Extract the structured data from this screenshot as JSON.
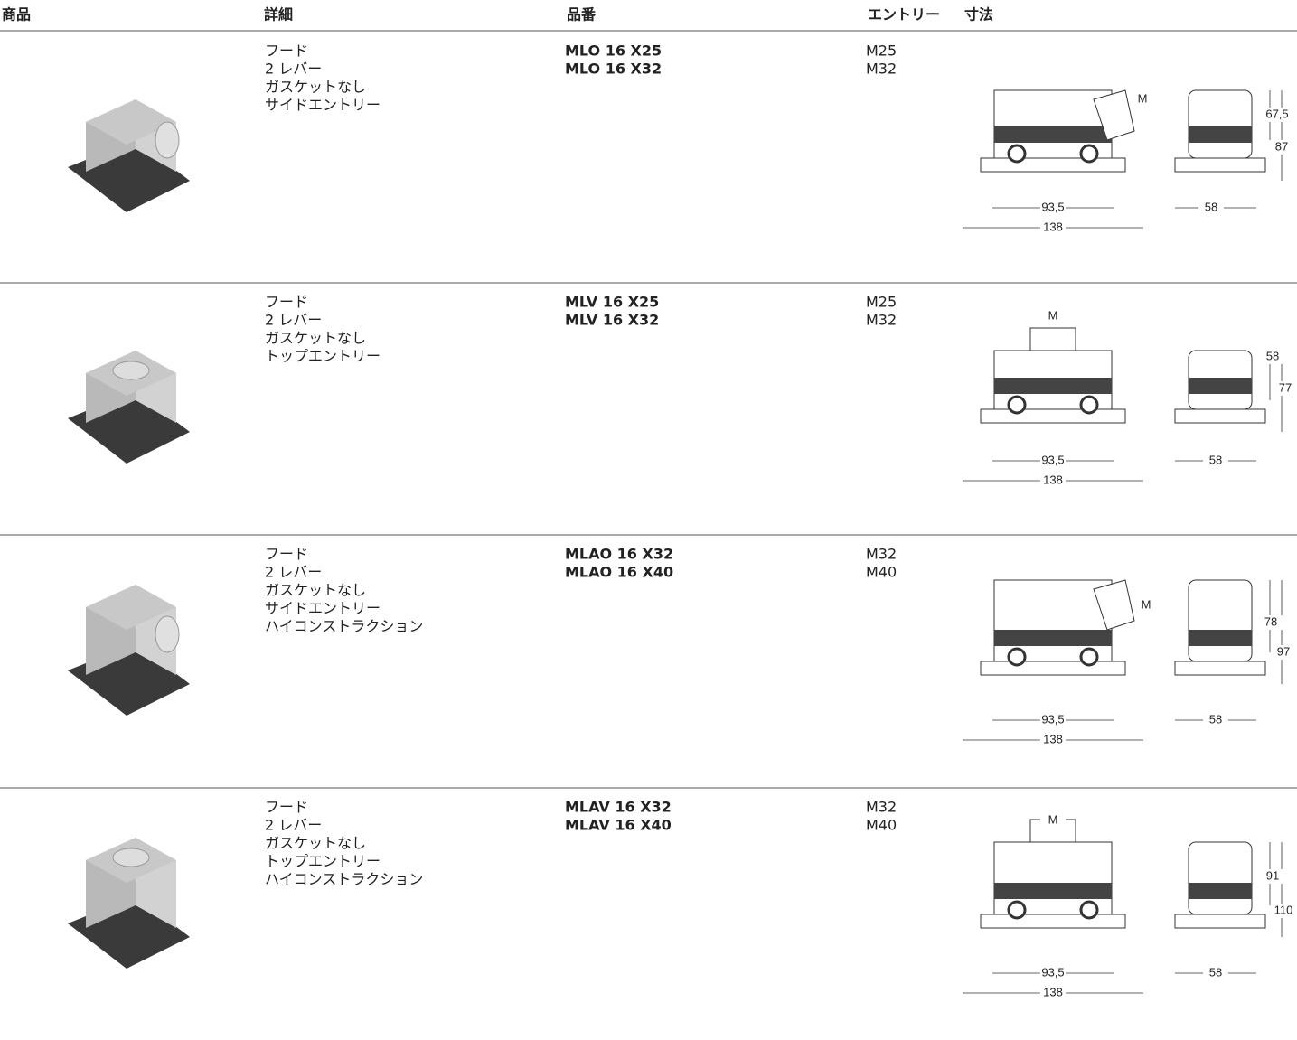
{
  "header": [
    "商品",
    "詳細",
    "品番",
    "エントリー",
    "寸法"
  ],
  "rows": [
    {
      "details": [
        "フード",
        "2 レバー",
        "ガスケットなし",
        "サイドエントリー"
      ],
      "part_numbers": [
        "MLO 16 X25",
        "MLO 16 X32"
      ],
      "entries": [
        "M25",
        "M32"
      ],
      "dimension_labels": [
        "M",
        "67,5",
        "87",
        "93,5",
        "138",
        "58"
      ]
    },
    {
      "details": [
        "フード",
        "2 レバー",
        "ガスケットなし",
        "トップエントリー"
      ],
      "part_numbers": [
        "MLV 16 X25",
        "MLV 16 X32"
      ],
      "entries": [
        "M25",
        "M32"
      ],
      "dimension_labels": [
        "M",
        "58",
        "77",
        "93,5",
        "138",
        "58"
      ]
    },
    {
      "details": [
        "フード",
        "2 レバー",
        "ガスケットなし",
        "サイドエントリー",
        "ハイコンストラクション"
      ],
      "part_numbers": [
        "MLAO 16 X32",
        "MLAO 16 X40"
      ],
      "entries": [
        "M32",
        "M40"
      ],
      "dimension_labels": [
        "M",
        "78",
        "97",
        "93,5",
        "138",
        "58"
      ]
    },
    {
      "details": [
        "フード",
        "2 レバー",
        "ガスケットなし",
        "トップエントリー",
        "ハイコンストラクション"
      ],
      "part_numbers": [
        "MLAV 16 X32",
        "MLAV 16 X40"
      ],
      "entries": [
        "M32",
        "M40"
      ],
      "dimension_labels": [
        "M",
        "91",
        "110",
        "93,5",
        "138",
        "58"
      ]
    }
  ]
}
